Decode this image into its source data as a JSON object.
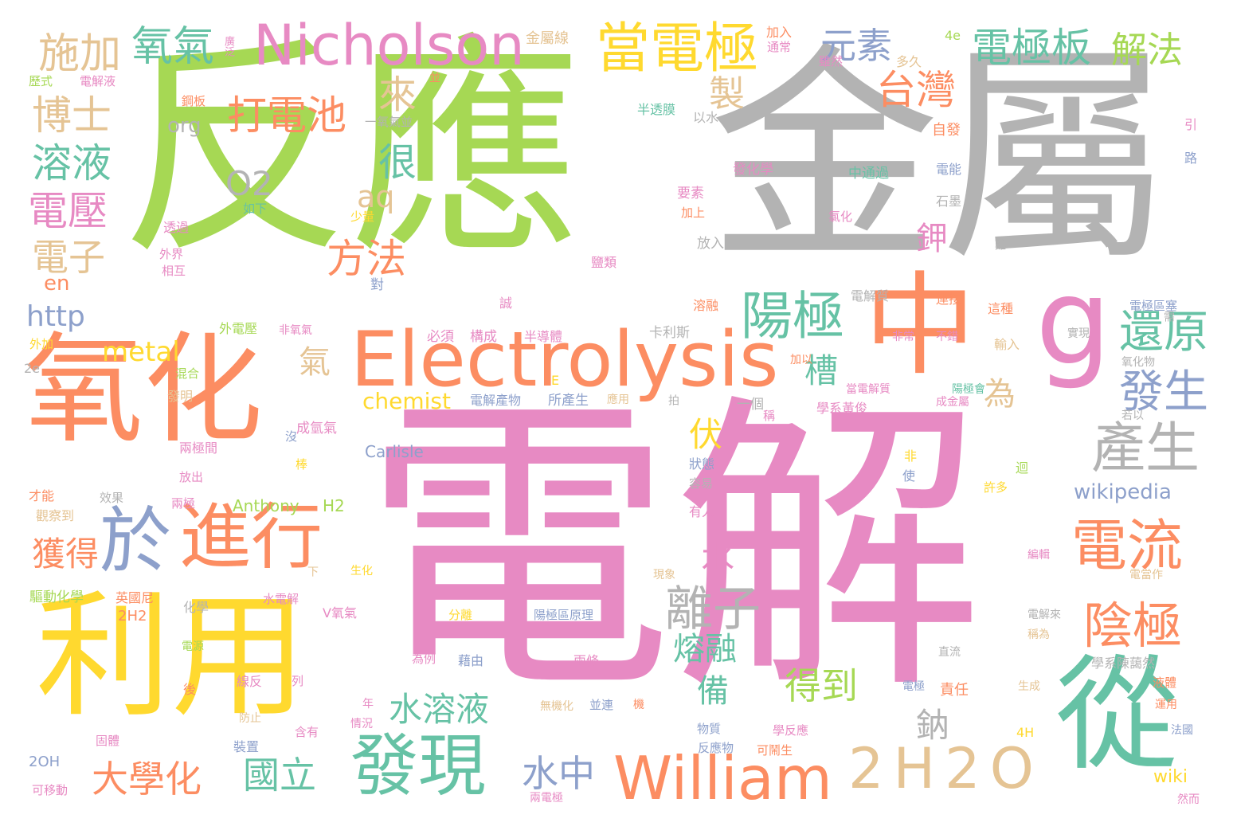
{
  "palette": {
    "green": "#a6d854",
    "pink": "#e78ac3",
    "gray": "#b3b3b3",
    "orange": "#fc8d62",
    "yellow": "#ffd92f",
    "teal": "#66c2a5",
    "blue": "#8da0cb",
    "tan": "#e5c494"
  },
  "words": [
    {
      "text": "反應",
      "color": "green"
    },
    {
      "text": "金屬",
      "color": "gray"
    },
    {
      "text": "電解",
      "color": "pink"
    },
    {
      "text": "氧化",
      "color": "orange"
    },
    {
      "text": "利用",
      "color": "yellow"
    },
    {
      "text": "中",
      "color": "orange"
    },
    {
      "text": "從",
      "color": "teal"
    },
    {
      "text": "g",
      "color": "pink"
    },
    {
      "text": "Electrolysis",
      "color": "orange"
    },
    {
      "text": "Nicholson",
      "color": "pink"
    },
    {
      "text": "William",
      "color": "orange"
    },
    {
      "text": "2H2O",
      "color": "tan"
    },
    {
      "text": "進行",
      "color": "orange"
    },
    {
      "text": "於",
      "color": "blue"
    },
    {
      "text": "發現",
      "color": "teal"
    },
    {
      "text": "當電極",
      "color": "yellow"
    },
    {
      "text": "電流",
      "color": "orange"
    },
    {
      "text": "產生",
      "color": "gray"
    },
    {
      "text": "陰極",
      "color": "orange"
    },
    {
      "text": "陽極",
      "color": "teal"
    },
    {
      "text": "離子",
      "color": "gray"
    },
    {
      "text": "還原",
      "color": "teal"
    },
    {
      "text": "發生",
      "color": "blue"
    },
    {
      "text": "台灣",
      "color": "orange"
    },
    {
      "text": "元素",
      "color": "blue"
    },
    {
      "text": "電極板",
      "color": "teal"
    },
    {
      "text": "解法",
      "color": "green"
    },
    {
      "text": "施加",
      "color": "tan"
    },
    {
      "text": "氧氣",
      "color": "teal"
    },
    {
      "text": "博士",
      "color": "tan"
    },
    {
      "text": "打電池",
      "color": "orange"
    },
    {
      "text": "溶液",
      "color": "teal"
    },
    {
      "text": "電壓",
      "color": "pink"
    },
    {
      "text": "電子",
      "color": "tan"
    },
    {
      "text": "方法",
      "color": "orange"
    },
    {
      "text": "O2",
      "color": "gray"
    },
    {
      "text": "aq",
      "color": "tan"
    },
    {
      "text": "來",
      "color": "tan"
    },
    {
      "text": "很",
      "color": "teal"
    },
    {
      "text": "製",
      "color": "tan"
    },
    {
      "text": "水溶液",
      "color": "teal"
    },
    {
      "text": "大學化",
      "color": "orange"
    },
    {
      "text": "國立",
      "color": "teal"
    },
    {
      "text": "水中",
      "color": "blue"
    },
    {
      "text": "獲得",
      "color": "orange"
    },
    {
      "text": "得到",
      "color": "green"
    },
    {
      "text": "熔融",
      "color": "teal"
    },
    {
      "text": "備",
      "color": "teal"
    },
    {
      "text": "水",
      "color": "pink"
    },
    {
      "text": "伏",
      "color": "yellow"
    },
    {
      "text": "槽",
      "color": "teal"
    },
    {
      "text": "氣",
      "color": "tan"
    },
    {
      "text": "為",
      "color": "tan"
    },
    {
      "text": "鉀",
      "color": "pink"
    },
    {
      "text": "鈉",
      "color": "gray"
    },
    {
      "text": "metal",
      "color": "yellow"
    },
    {
      "text": "http",
      "color": "blue"
    },
    {
      "text": "en",
      "color": "orange"
    },
    {
      "text": "org",
      "color": "gray"
    },
    {
      "text": "chemist",
      "color": "yellow"
    },
    {
      "text": "wikipedia",
      "color": "blue"
    },
    {
      "text": "Carlisle",
      "color": "blue"
    },
    {
      "text": "Anthony",
      "color": "green"
    },
    {
      "text": "H2",
      "color": "green"
    },
    {
      "text": "wiki",
      "color": "yellow"
    },
    {
      "text": "2OH",
      "color": "blue"
    },
    {
      "text": "2H2",
      "color": "orange"
    },
    {
      "text": "4e",
      "color": "green"
    },
    {
      "text": "2e",
      "color": "gray"
    },
    {
      "text": "4H",
      "color": "yellow"
    },
    {
      "text": "V氧氣",
      "color": "pink"
    },
    {
      "text": "金屬線",
      "color": "tan"
    },
    {
      "text": "加入",
      "color": "orange"
    },
    {
      "text": "多久",
      "color": "tan"
    },
    {
      "text": "廣泛",
      "color": "pink"
    },
    {
      "text": "通常",
      "color": "pink"
    },
    {
      "text": "雖然",
      "color": "pink"
    },
    {
      "text": "歷式",
      "color": "green"
    },
    {
      "text": "電解液",
      "color": "pink"
    },
    {
      "text": "並",
      "color": "orange"
    },
    {
      "text": "鋼板",
      "color": "orange"
    },
    {
      "text": "一氧氣並",
      "color": "gray"
    },
    {
      "text": "半透膜",
      "color": "teal"
    },
    {
      "text": "以水",
      "color": "gray"
    },
    {
      "text": "引",
      "color": "pink"
    },
    {
      "text": "自發",
      "color": "orange"
    },
    {
      "text": "路",
      "color": "blue"
    },
    {
      "text": "發化學",
      "color": "pink"
    },
    {
      "text": "中通過",
      "color": "teal"
    },
    {
      "text": "電能",
      "color": "blue"
    },
    {
      "text": "要素",
      "color": "pink"
    },
    {
      "text": "如下",
      "color": "teal"
    },
    {
      "text": "加上",
      "color": "orange"
    },
    {
      "text": "石墨",
      "color": "gray"
    },
    {
      "text": "少量",
      "color": "yellow"
    },
    {
      "text": "氯化",
      "color": "pink"
    },
    {
      "text": "透過",
      "color": "pink"
    },
    {
      "text": "外界",
      "color": "pink"
    },
    {
      "text": "相互",
      "color": "pink"
    },
    {
      "text": "放入",
      "color": "gray"
    },
    {
      "text": "鹽類",
      "color": "pink"
    },
    {
      "text": "難",
      "color": "gray"
    },
    {
      "text": "對",
      "color": "blue"
    },
    {
      "text": "溶融",
      "color": "orange"
    },
    {
      "text": "電解質",
      "color": "gray"
    },
    {
      "text": "連接",
      "color": "orange"
    },
    {
      "text": "這種",
      "color": "orange"
    },
    {
      "text": "電極區塞",
      "color": "blue"
    },
    {
      "text": "外電壓",
      "color": "green"
    },
    {
      "text": "非氧氣",
      "color": "pink"
    },
    {
      "text": "卡利斯",
      "color": "gray"
    },
    {
      "text": "必須",
      "color": "pink"
    },
    {
      "text": "構成",
      "color": "pink"
    },
    {
      "text": "誠",
      "color": "pink"
    },
    {
      "text": "半導體",
      "color": "pink"
    },
    {
      "text": "非常",
      "color": "pink"
    },
    {
      "text": "不錯",
      "color": "pink"
    },
    {
      "text": "輸入",
      "color": "tan"
    },
    {
      "text": "實現",
      "color": "gray"
    },
    {
      "text": "外加",
      "color": "yellow"
    },
    {
      "text": "混合",
      "color": "green"
    },
    {
      "text": "需",
      "color": "gray"
    },
    {
      "text": "加以",
      "color": "orange"
    },
    {
      "text": "氧化物",
      "color": "gray"
    },
    {
      "text": "當電解質",
      "color": "pink"
    },
    {
      "text": "陽極會",
      "color": "teal"
    },
    {
      "text": "發明",
      "color": "tan"
    },
    {
      "text": "E",
      "color": "yellow"
    },
    {
      "text": "電解產物",
      "color": "blue"
    },
    {
      "text": "所產生",
      "color": "blue"
    },
    {
      "text": "應用",
      "color": "tan"
    },
    {
      "text": "學系黃俊",
      "color": "pink"
    },
    {
      "text": "成金屬",
      "color": "pink"
    },
    {
      "text": "若以",
      "color": "gray"
    },
    {
      "text": "拍",
      "color": "gray"
    },
    {
      "text": "一個",
      "color": "gray"
    },
    {
      "text": "稱",
      "color": "pink"
    },
    {
      "text": "成氫氣",
      "color": "pink"
    },
    {
      "text": "沒",
      "color": "blue"
    },
    {
      "text": "非",
      "color": "yellow"
    },
    {
      "text": "兩極間",
      "color": "pink"
    },
    {
      "text": "棒",
      "color": "yellow"
    },
    {
      "text": "使",
      "color": "blue"
    },
    {
      "text": "迴",
      "color": "green"
    },
    {
      "text": "狀態",
      "color": "blue"
    },
    {
      "text": "放出",
      "color": "pink"
    },
    {
      "text": "才能",
      "color": "orange"
    },
    {
      "text": "效果",
      "color": "gray"
    },
    {
      "text": "兩極",
      "color": "pink"
    },
    {
      "text": "容易",
      "color": "gray"
    },
    {
      "text": "許多",
      "color": "yellow"
    },
    {
      "text": "觀察到",
      "color": "tan"
    },
    {
      "text": "有人",
      "color": "pink"
    },
    {
      "text": "生化",
      "color": "yellow"
    },
    {
      "text": "編輯",
      "color": "pink"
    },
    {
      "text": "現象",
      "color": "tan"
    },
    {
      "text": "電當作",
      "color": "tan"
    },
    {
      "text": "驅動化學",
      "color": "green"
    },
    {
      "text": "英國尼",
      "color": "orange"
    },
    {
      "text": "下",
      "color": "tan"
    },
    {
      "text": "化學",
      "color": "gray"
    },
    {
      "text": "水電解",
      "color": "pink"
    },
    {
      "text": "分離",
      "color": "yellow"
    },
    {
      "text": "陽極區原理",
      "color": "blue"
    },
    {
      "text": "電解來",
      "color": "gray"
    },
    {
      "text": "稱為",
      "color": "tan"
    },
    {
      "text": "電源",
      "color": "green"
    },
    {
      "text": "直流",
      "color": "gray"
    },
    {
      "text": "為例",
      "color": "pink"
    },
    {
      "text": "藉由",
      "color": "blue"
    },
    {
      "text": "兩條",
      "color": "pink"
    },
    {
      "text": "學系陳藹然",
      "color": "gray"
    },
    {
      "text": "線反",
      "color": "pink"
    },
    {
      "text": "列",
      "color": "pink"
    },
    {
      "text": "電極",
      "color": "blue"
    },
    {
      "text": "責任",
      "color": "orange"
    },
    {
      "text": "生成",
      "color": "tan"
    },
    {
      "text": "後",
      "color": "orange"
    },
    {
      "text": "液體",
      "color": "orange"
    },
    {
      "text": "年",
      "color": "pink"
    },
    {
      "text": "無機化",
      "color": "tan"
    },
    {
      "text": "並連",
      "color": "blue"
    },
    {
      "text": "機",
      "color": "orange"
    },
    {
      "text": "運用",
      "color": "orange"
    },
    {
      "text": "防止",
      "color": "tan"
    },
    {
      "text": "情況",
      "color": "pink"
    },
    {
      "text": "物質",
      "color": "blue"
    },
    {
      "text": "學反應",
      "color": "pink"
    },
    {
      "text": "法國",
      "color": "blue"
    },
    {
      "text": "固體",
      "color": "pink"
    },
    {
      "text": "裝置",
      "color": "blue"
    },
    {
      "text": "含有",
      "color": "pink"
    },
    {
      "text": "反應物",
      "color": "blue"
    },
    {
      "text": "可鬧生",
      "color": "orange"
    },
    {
      "text": "可移動",
      "color": "pink"
    },
    {
      "text": "兩電極",
      "color": "pink"
    },
    {
      "text": "然而",
      "color": "pink"
    }
  ]
}
